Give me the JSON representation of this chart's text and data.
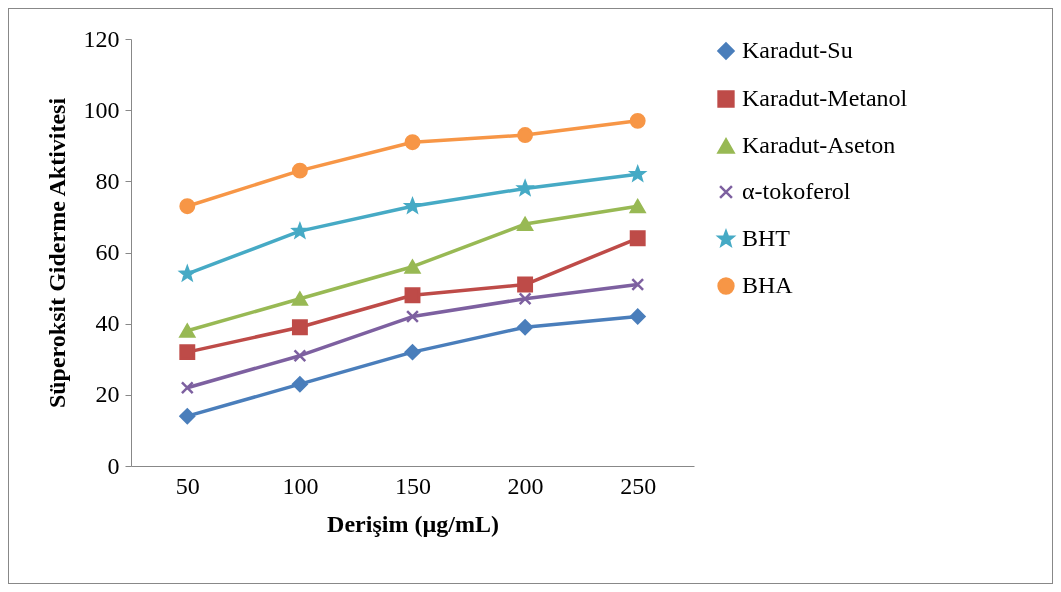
{
  "chart_data": {
    "type": "line",
    "xlabel": "Derişim (µg/mL)",
    "ylabel": "Süperoksit Giderme Aktivitesi",
    "categories": [
      "50",
      "100",
      "150",
      "200",
      "250"
    ],
    "ylim": [
      0,
      120
    ],
    "yticks": [
      0,
      20,
      40,
      60,
      80,
      100,
      120
    ],
    "grid": false,
    "legend": "right",
    "line_style": "solid",
    "series": [
      {
        "name": "Karadut-Su",
        "color": "#4a7ebb",
        "marker": "diamond",
        "values": [
          14,
          23,
          32,
          39,
          42
        ]
      },
      {
        "name": "Karadut-Metanol",
        "color": "#be4b48",
        "marker": "square",
        "values": [
          32,
          39,
          48,
          51,
          64
        ]
      },
      {
        "name": "Karadut-Aseton",
        "color": "#98b954",
        "marker": "triangle",
        "values": [
          38,
          47,
          56,
          68,
          73
        ]
      },
      {
        "name": "α-tokoferol",
        "color": "#7d60a0",
        "marker": "cross",
        "values": [
          22,
          31,
          42,
          47,
          51
        ]
      },
      {
        "name": "BHT",
        "color": "#46aac5",
        "marker": "star",
        "values": [
          54,
          66,
          73,
          78,
          82
        ]
      },
      {
        "name": "BHA",
        "color": "#f79646",
        "marker": "circle",
        "values": [
          73,
          83,
          91,
          93,
          97
        ]
      }
    ]
  }
}
